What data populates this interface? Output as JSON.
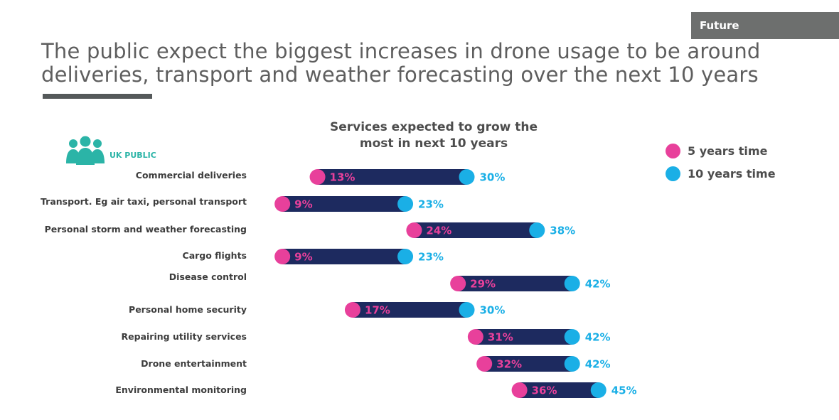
{
  "tag": "Future",
  "title_line1": "The public expect the biggest increases in drone usage to be around",
  "title_line2": "deliveries, transport and weather forecasting over the next 10 years",
  "public_label": "UK PUBLIC",
  "public_icon": "people-group-icon",
  "colors": {
    "five_years": "#e8409b",
    "ten_years": "#1aafe6",
    "bar": "#1d2a5f",
    "accent_teal": "#2bb4a7"
  },
  "chart_data": {
    "type": "dumbbell",
    "title_line1": "Services expected to grow the",
    "title_line2": "most in next 10 years",
    "categories": [
      "Commercial deliveries",
      "Transport. Eg air taxi, personal transport",
      "Personal storm and weather forecasting",
      "Cargo flights",
      "Disease control",
      "Personal home security",
      "Repairing utility services",
      "Drone entertainment",
      "Environmental monitoring"
    ],
    "series": [
      {
        "name": "5 years time",
        "values": [
          13,
          9,
          24,
          9,
          29,
          17,
          31,
          32,
          36
        ]
      },
      {
        "name": "10 years time",
        "values": [
          30,
          23,
          38,
          23,
          42,
          30,
          42,
          42,
          45
        ]
      }
    ],
    "unit": "%",
    "legend": "top-right"
  }
}
